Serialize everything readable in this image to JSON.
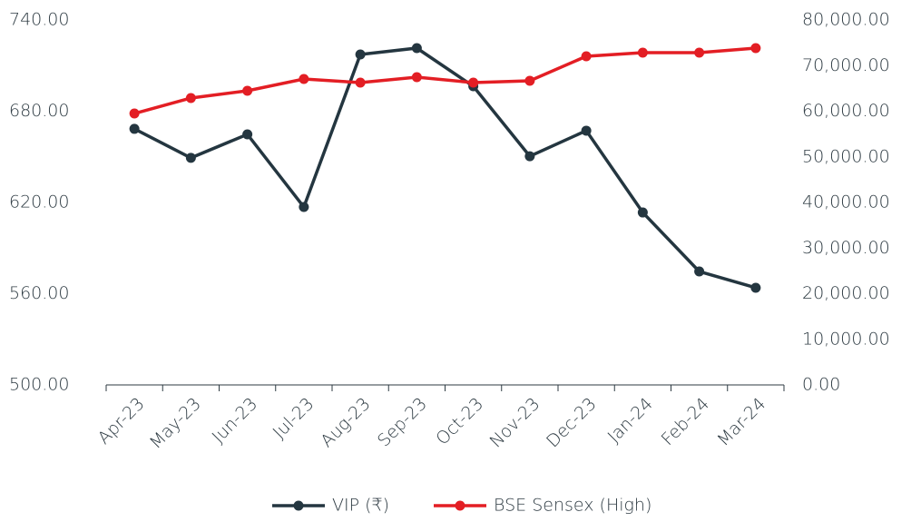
{
  "chart_data": {
    "type": "line",
    "categories": [
      "Apr-23",
      "May-23",
      "Jun-23",
      "Jul-23",
      "Aug-23",
      "Sep-23",
      "Oct-23",
      "Nov-23",
      "Dec-23",
      "Jan-24",
      "Feb-24",
      "Mar-24"
    ],
    "series": [
      {
        "name": "VIP (₹)",
        "color": "#243640",
        "values": [
          668.4,
          649.3,
          664.8,
          617.0,
          717.3,
          721.5,
          696.4,
          650.4,
          667.2,
          613.4,
          574.6,
          563.9
        ]
      },
      {
        "name": "BSE Sensex (High)",
        "color": "#e31e24",
        "axis": "y2",
        "values": [
          59502,
          62886,
          64478,
          67065,
          66269,
          67463,
          66269,
          66667,
          72040,
          72836,
          72836,
          73831
        ]
      }
    ],
    "ylim": [
      500,
      740
    ],
    "yticks": [
      {
        "value": 500,
        "label": "500.00"
      },
      {
        "value": 560,
        "label": "560.00"
      },
      {
        "value": 620,
        "label": "620.00"
      },
      {
        "value": 680,
        "label": "680.00"
      },
      {
        "value": 740,
        "label": "740.00"
      }
    ],
    "y2lim": [
      0,
      80000
    ],
    "y2ticks": [
      {
        "value": 0,
        "label": "0.00"
      },
      {
        "value": 10000,
        "label": "10,000.00"
      },
      {
        "value": 20000,
        "label": "20,000.00"
      },
      {
        "value": 30000,
        "label": "30,000.00"
      },
      {
        "value": 40000,
        "label": "40,000.00"
      },
      {
        "value": 50000,
        "label": "50,000.00"
      },
      {
        "value": 60000,
        "label": "60,000.00"
      },
      {
        "value": 70000,
        "label": "70,000.00"
      },
      {
        "value": 80000,
        "label": "80,000.00"
      }
    ],
    "legend": "bottom"
  }
}
